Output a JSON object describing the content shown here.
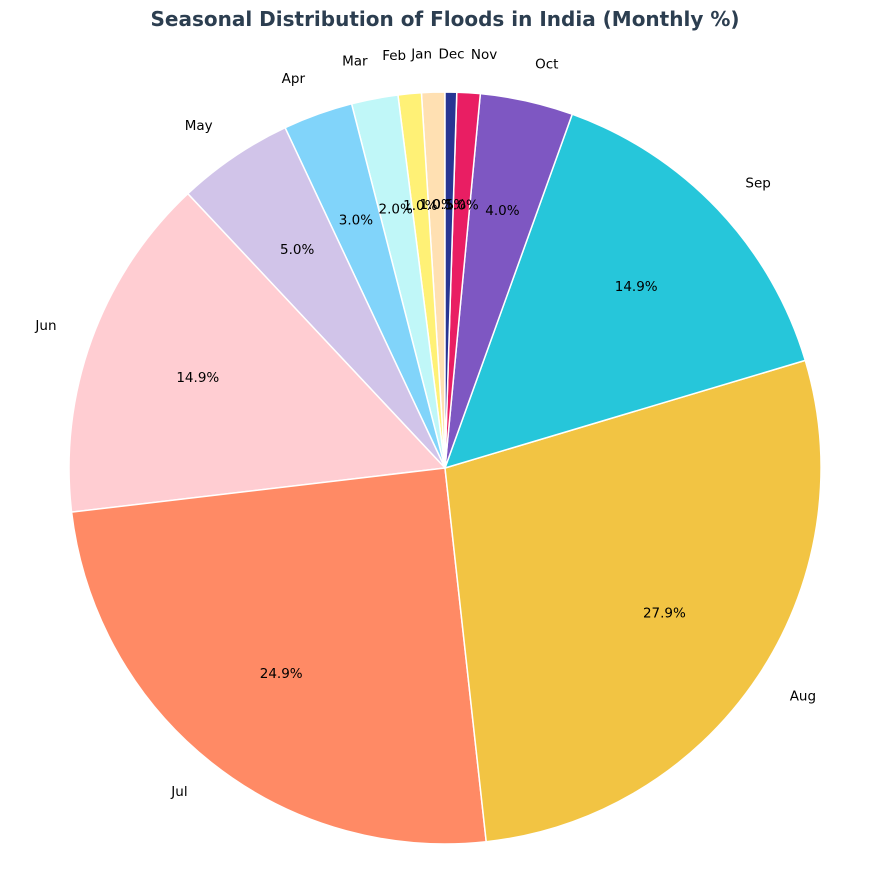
{
  "chart_data": {
    "type": "pie",
    "title": "Seasonal Distribution of Floods in India (Monthly %)",
    "categories": [
      "Jan",
      "Feb",
      "Mar",
      "Apr",
      "May",
      "Jun",
      "Jul",
      "Aug",
      "Sep",
      "Oct",
      "Nov",
      "Dec"
    ],
    "values": [
      1.0,
      1.0,
      2.0,
      3.0,
      5.0,
      14.9,
      24.9,
      27.9,
      14.9,
      4.0,
      1.0,
      0.5
    ],
    "percent_labels": [
      "1.0%",
      "1.0%",
      "2.0%",
      "3.0%",
      "5.0%",
      "14.9%",
      "24.9%",
      "27.9%",
      "14.9%",
      "4.0%",
      "1.0%",
      "0.5%"
    ],
    "colors": [
      "#ffe0b2",
      "#fff176",
      "#c0f7f8",
      "#81d4fa",
      "#d1c4e9",
      "#ffcdd2",
      "#ff8a65",
      "#f2c443",
      "#26c6da",
      "#7e57c2",
      "#e91e63",
      "#283593"
    ],
    "start_angle_deg": 90,
    "direction": "counterclockwise",
    "legend": "none"
  }
}
